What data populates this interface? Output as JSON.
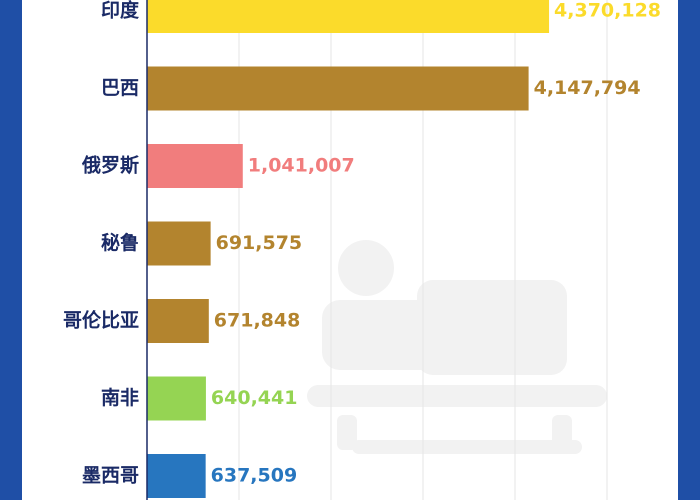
{
  "chart_data": {
    "type": "bar",
    "orientation": "horizontal",
    "categories": [
      "印度",
      "巴西",
      "俄罗斯",
      "秘鲁",
      "哥伦比亚",
      "南非",
      "墨西哥"
    ],
    "values": [
      4370128,
      4147794,
      1041007,
      691575,
      671848,
      640441,
      637509
    ],
    "value_labels": [
      "4,370,128",
      "4,147,794",
      "1,041,007",
      "691,575",
      "671,848",
      "640,441",
      "637,509"
    ],
    "colors": [
      "#fbdb2b",
      "#b3842e",
      "#f17d7d",
      "#b3842e",
      "#b3842e",
      "#95d453",
      "#2776bf"
    ],
    "xlim": [
      0,
      5500000
    ],
    "grid": true,
    "legend": "none"
  }
}
